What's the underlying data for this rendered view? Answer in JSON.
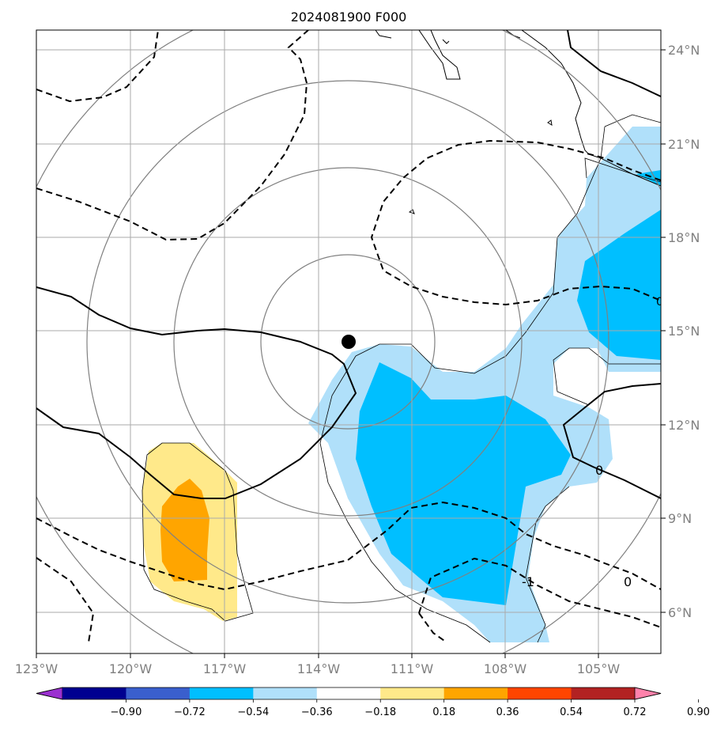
{
  "title": "2024081900 F000",
  "longitude_labels": [
    "123°W",
    "120°W",
    "117°W",
    "114°W",
    "111°W",
    "108°W",
    "105°W"
  ],
  "latitude_labels": [
    "24°N",
    "21°N",
    "18°N",
    "15°N",
    "12°N",
    "9°N",
    "6°N"
  ],
  "contour_labels": [
    "0",
    "0",
    "0",
    "-1"
  ],
  "colorbar": {
    "tick_labels": [
      "−0.90",
      "−0.72",
      "−0.54",
      "−0.36",
      "−0.18",
      "0.18",
      "0.36",
      "0.54",
      "0.72",
      "0.90"
    ],
    "colors": [
      "#9b30d0",
      "#000090",
      "#3a5fcd",
      "#00bfff",
      "#b0e0fa",
      "#ffffff",
      "#ffe98a",
      "#ffa500",
      "#ff4500",
      "#b22222",
      "#ff82ab"
    ]
  },
  "storm_center": {
    "lon": -112.2,
    "lat": 14.6
  }
}
